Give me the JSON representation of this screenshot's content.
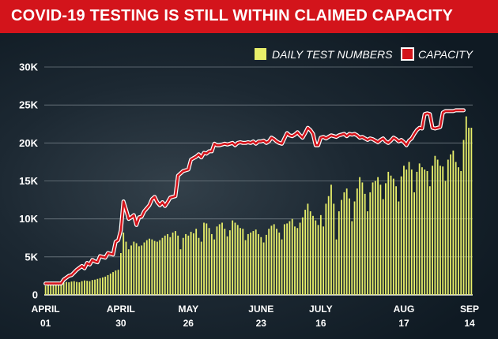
{
  "banner": {
    "title": "COVID-19 TESTING IS STILL WITHIN CLAIMED CAPACITY"
  },
  "colors": {
    "banner": "#d3141b",
    "bars": "#e8ef6a",
    "capacity_line": "#d3141b",
    "capacity_outline": "#ffffff",
    "background": "#1c2832"
  },
  "chart_data": {
    "type": "bar",
    "title": "",
    "xlabel": "",
    "ylabel": "",
    "ylim": [
      0,
      30000
    ],
    "grid": true,
    "legend": "top-right",
    "y_ticks": [
      "0",
      "5K",
      "10K",
      "15K",
      "20K",
      "25K",
      "30K"
    ],
    "y_tick_values": [
      0,
      5000,
      10000,
      15000,
      20000,
      25000,
      30000
    ],
    "x_ticks": [
      {
        "line1": "APRIL",
        "line2": "01",
        "day": 0
      },
      {
        "line1": "APRIL",
        "line2": "30",
        "day": 29
      },
      {
        "line1": "MAY",
        "line2": "26",
        "day": 55
      },
      {
        "line1": "JUNE",
        "line2": "23",
        "day": 83
      },
      {
        "line1": "JULY",
        "line2": "16",
        "day": 106
      },
      {
        "line1": "AUG",
        "line2": "17",
        "day": 138
      },
      {
        "line1": "SEP",
        "line2": "14",
        "day": 166
      }
    ],
    "series": [
      {
        "name": "DAILY TEST NUMBERS",
        "kind": "bar",
        "values": [
          1200,
          1250,
          1300,
          1350,
          1400,
          1500,
          1550,
          1600,
          1700,
          1650,
          1750,
          1800,
          1700,
          1650,
          1800,
          1900,
          1850,
          1800,
          1950,
          2000,
          2100,
          2200,
          2300,
          2400,
          2600,
          2800,
          3000,
          3200,
          3300,
          5500,
          8200,
          7000,
          6000,
          6500,
          7000,
          6800,
          6400,
          6500,
          6900,
          7200,
          7400,
          7300,
          7100,
          7000,
          7200,
          7500,
          7800,
          8000,
          7600,
          8200,
          8400,
          7800,
          6000,
          7500,
          8000,
          7800,
          8300,
          8100,
          8700,
          7500,
          7000,
          9500,
          9400,
          8800,
          8000,
          7300,
          9000,
          9300,
          9500,
          8700,
          7700,
          8500,
          9800,
          9500,
          9200,
          8800,
          8700,
          7200,
          8000,
          8200,
          8400,
          8600,
          8000,
          7600,
          6900,
          7900,
          8700,
          9100,
          9300,
          8700,
          8200,
          7300,
          9300,
          9400,
          9700,
          10000,
          9000,
          8800,
          9500,
          10200,
          11200,
          12000,
          11000,
          10400,
          9800,
          9200,
          10500,
          9000,
          12000,
          13000,
          14500,
          12000,
          7300,
          11000,
          12500,
          13500,
          14000,
          12700,
          9700,
          12300,
          14000,
          15500,
          14800,
          13300,
          11000,
          13500,
          14800,
          15000,
          15500,
          14500,
          12600,
          14700,
          16200,
          15700,
          15300,
          14300,
          12300,
          15600,
          17000,
          16500,
          17500,
          16500,
          13500,
          16200,
          17300,
          16800,
          16500,
          16300,
          14300,
          17000,
          18300,
          17800,
          17000,
          16900,
          15000,
          17800,
          18500,
          19000,
          17500,
          16800,
          16300,
          20400,
          23500,
          22000,
          22000
        ]
      },
      {
        "name": "CAPACITY",
        "kind": "line",
        "points": [
          [
            0,
            1500
          ],
          [
            6,
            1500
          ],
          [
            7,
            2000
          ],
          [
            9,
            2500
          ],
          [
            10,
            2600
          ],
          [
            12,
            3300
          ],
          [
            14,
            3800
          ],
          [
            15,
            3500
          ],
          [
            16,
            4200
          ],
          [
            17,
            4000
          ],
          [
            18,
            4600
          ],
          [
            19,
            4400
          ],
          [
            20,
            4300
          ],
          [
            21,
            5100
          ],
          [
            23,
            4900
          ],
          [
            24,
            5500
          ],
          [
            26,
            5300
          ],
          [
            27,
            7000
          ],
          [
            28,
            7200
          ],
          [
            29,
            8500
          ],
          [
            30,
            12300
          ],
          [
            31,
            11200
          ],
          [
            32,
            10000
          ],
          [
            33,
            10200
          ],
          [
            34,
            10500
          ],
          [
            35,
            9200
          ],
          [
            36,
            10200
          ],
          [
            37,
            10300
          ],
          [
            38,
            11000
          ],
          [
            39,
            11400
          ],
          [
            40,
            11800
          ],
          [
            41,
            12600
          ],
          [
            42,
            12900
          ],
          [
            43,
            12200
          ],
          [
            44,
            11800
          ],
          [
            45,
            12200
          ],
          [
            46,
            11700
          ],
          [
            47,
            12200
          ],
          [
            48,
            12800
          ],
          [
            49,
            12900
          ],
          [
            50,
            13000
          ],
          [
            51,
            15700
          ],
          [
            52,
            16000
          ],
          [
            53,
            16300
          ],
          [
            54,
            16400
          ],
          [
            55,
            16500
          ],
          [
            56,
            17800
          ],
          [
            57,
            18000
          ],
          [
            58,
            18200
          ],
          [
            59,
            18500
          ],
          [
            60,
            18100
          ],
          [
            61,
            18700
          ],
          [
            62,
            18600
          ],
          [
            63,
            18900
          ],
          [
            64,
            18900
          ],
          [
            65,
            19900
          ],
          [
            66,
            19700
          ],
          [
            67,
            19700
          ],
          [
            68,
            19800
          ],
          [
            69,
            19900
          ],
          [
            70,
            19800
          ],
          [
            71,
            19900
          ],
          [
            72,
            20000
          ],
          [
            73,
            19700
          ],
          [
            74,
            20000
          ],
          [
            75,
            20100
          ],
          [
            76,
            20000
          ],
          [
            77,
            20000
          ],
          [
            78,
            20100
          ],
          [
            79,
            20000
          ],
          [
            80,
            20200
          ],
          [
            81,
            19900
          ],
          [
            82,
            20200
          ],
          [
            83,
            20200
          ],
          [
            84,
            20300
          ],
          [
            85,
            20000
          ],
          [
            86,
            20200
          ],
          [
            87,
            20700
          ],
          [
            88,
            20500
          ],
          [
            89,
            20200
          ],
          [
            90,
            20000
          ],
          [
            91,
            19900
          ],
          [
            92,
            20600
          ],
          [
            93,
            21300
          ],
          [
            94,
            21000
          ],
          [
            95,
            20900
          ],
          [
            96,
            21100
          ],
          [
            97,
            21400
          ],
          [
            98,
            21000
          ],
          [
            99,
            20700
          ],
          [
            100,
            21300
          ],
          [
            101,
            22000
          ],
          [
            102,
            21700
          ],
          [
            103,
            21200
          ],
          [
            104,
            19700
          ],
          [
            105,
            19700
          ],
          [
            106,
            20700
          ],
          [
            107,
            20800
          ],
          [
            108,
            20600
          ],
          [
            109,
            20800
          ],
          [
            110,
            21000
          ],
          [
            111,
            20900
          ],
          [
            112,
            20800
          ],
          [
            113,
            21000
          ],
          [
            114,
            21100
          ],
          [
            115,
            21200
          ],
          [
            116,
            20900
          ],
          [
            117,
            21200
          ],
          [
            118,
            21100
          ],
          [
            119,
            21200
          ],
          [
            120,
            21000
          ],
          [
            121,
            20700
          ],
          [
            122,
            20800
          ],
          [
            123,
            20600
          ],
          [
            124,
            20400
          ],
          [
            125,
            20600
          ],
          [
            126,
            20500
          ],
          [
            127,
            20300
          ],
          [
            128,
            20100
          ],
          [
            129,
            20400
          ],
          [
            130,
            20600
          ],
          [
            131,
            20200
          ],
          [
            132,
            20000
          ],
          [
            133,
            20300
          ],
          [
            134,
            20700
          ],
          [
            135,
            20500
          ],
          [
            136,
            20200
          ],
          [
            137,
            20400
          ],
          [
            138,
            20100
          ],
          [
            139,
            19700
          ],
          [
            140,
            20300
          ],
          [
            141,
            20600
          ],
          [
            142,
            21200
          ],
          [
            143,
            21700
          ],
          [
            144,
            22000
          ],
          [
            145,
            21900
          ],
          [
            146,
            23800
          ],
          [
            147,
            23900
          ],
          [
            148,
            23800
          ],
          [
            149,
            22000
          ],
          [
            150,
            21900
          ],
          [
            151,
            22000
          ],
          [
            152,
            22100
          ],
          [
            153,
            24000
          ],
          [
            154,
            24200
          ],
          [
            155,
            24200
          ],
          [
            156,
            24200
          ],
          [
            157,
            24200
          ],
          [
            158,
            24300
          ],
          [
            159,
            24300
          ],
          [
            160,
            24300
          ],
          [
            161,
            24300
          ]
        ]
      }
    ]
  }
}
